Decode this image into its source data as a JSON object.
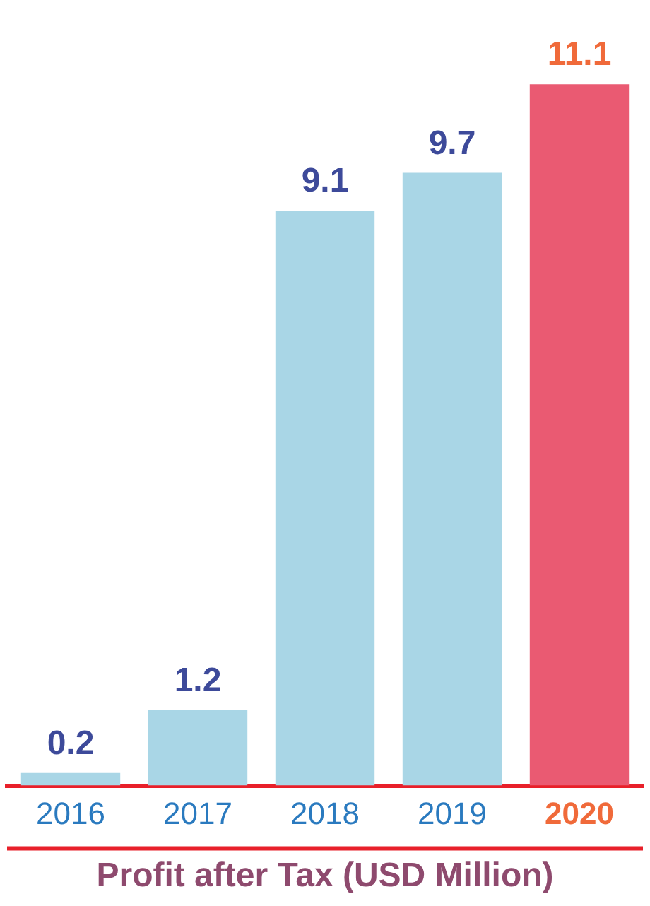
{
  "chart_data": {
    "type": "bar",
    "title": "Profit after Tax (USD Million)",
    "categories": [
      "2016",
      "2017",
      "2018",
      "2019",
      "2020"
    ],
    "values": [
      0.2,
      1.2,
      9.1,
      9.7,
      11.1
    ],
    "colors": [
      "#a9d6e6",
      "#a9d6e6",
      "#a9d6e6",
      "#a9d6e6",
      "#ea5a72"
    ],
    "data_labels": true,
    "legend": false,
    "grid": false
  }
}
